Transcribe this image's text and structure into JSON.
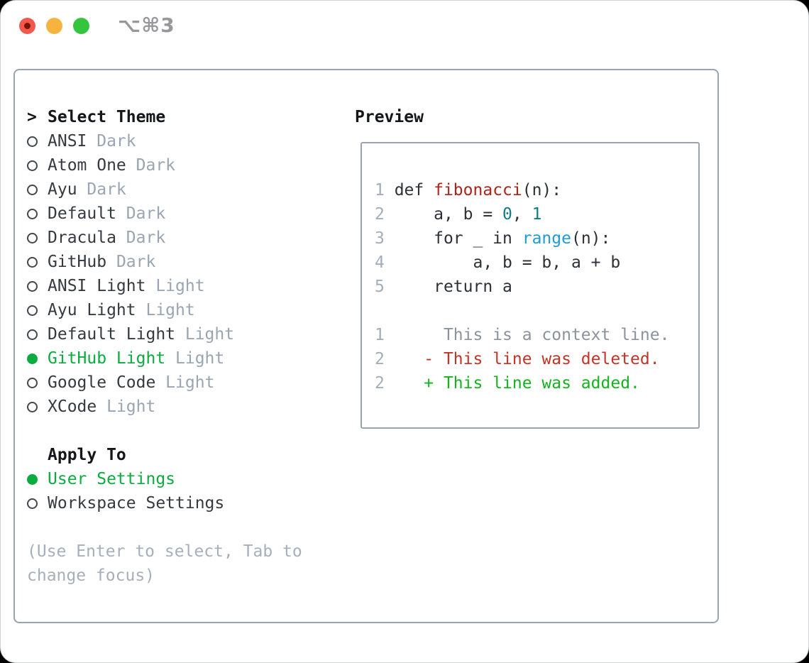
{
  "window": {
    "title": "⌥⌘3"
  },
  "titlebar": {
    "buttons": [
      {
        "name": "close",
        "color": "#f2584c"
      },
      {
        "name": "minimize",
        "color": "#f6b43e"
      },
      {
        "name": "zoom",
        "color": "#35c53d"
      }
    ]
  },
  "theme_picker": {
    "prompt_prefix": ">",
    "title": "Select Theme",
    "themes": [
      {
        "name": "ANSI",
        "variant": "Dark",
        "selected": false
      },
      {
        "name": "Atom One",
        "variant": "Dark",
        "selected": false
      },
      {
        "name": "Ayu",
        "variant": "Dark",
        "selected": false
      },
      {
        "name": "Default",
        "variant": "Dark",
        "selected": false
      },
      {
        "name": "Dracula",
        "variant": "Dark",
        "selected": false
      },
      {
        "name": "GitHub",
        "variant": "Dark",
        "selected": false
      },
      {
        "name": "ANSI Light",
        "variant": "Light",
        "selected": false
      },
      {
        "name": "Ayu Light",
        "variant": "Light",
        "selected": false
      },
      {
        "name": "Default Light",
        "variant": "Light",
        "selected": false
      },
      {
        "name": "GitHub Light",
        "variant": "Light",
        "selected": true
      },
      {
        "name": "Google Code",
        "variant": "Light",
        "selected": false
      },
      {
        "name": "XCode",
        "variant": "Light",
        "selected": false
      }
    ],
    "apply_to": {
      "title": "Apply To",
      "options": [
        {
          "label": "User Settings",
          "selected": true
        },
        {
          "label": "Workspace Settings",
          "selected": false
        }
      ]
    },
    "hint_lines": [
      "(Use Enter to select, Tab to",
      "change focus)"
    ]
  },
  "preview": {
    "title": "Preview",
    "lines": [
      [
        {
          "t": "1",
          "c": "line-number"
        },
        {
          "t": " def ",
          "c": "default"
        },
        {
          "t": "fibonacci",
          "c": "function"
        },
        {
          "t": "(n):",
          "c": "default"
        }
      ],
      [
        {
          "t": "2",
          "c": "line-number"
        },
        {
          "t": "     a, b = ",
          "c": "default"
        },
        {
          "t": "0",
          "c": "number"
        },
        {
          "t": ", ",
          "c": "default"
        },
        {
          "t": "1",
          "c": "number"
        }
      ],
      [
        {
          "t": "3",
          "c": "line-number"
        },
        {
          "t": "     for _ in ",
          "c": "default"
        },
        {
          "t": "range",
          "c": "builtin"
        },
        {
          "t": "(n):",
          "c": "default"
        }
      ],
      [
        {
          "t": "4",
          "c": "line-number"
        },
        {
          "t": "         a, b = b, a + b",
          "c": "default"
        }
      ],
      [
        {
          "t": "5",
          "c": "line-number"
        },
        {
          "t": "     return a",
          "c": "default"
        }
      ],
      [],
      [
        {
          "t": "1",
          "c": "line-number"
        },
        {
          "t": "      This is a context line.",
          "c": "context"
        }
      ],
      [
        {
          "t": "2",
          "c": "line-number"
        },
        {
          "t": "    - This line was deleted.",
          "c": "deleted"
        }
      ],
      [
        {
          "t": "2",
          "c": "line-number"
        },
        {
          "t": "    + This line was added.",
          "c": "added"
        }
      ]
    ]
  },
  "colors": {
    "selection-green": "#0cab40",
    "name-dark": "#353a41",
    "variant-gray": "#9aa5b3",
    "hint-gray": "#a6afba",
    "header-black": "#14161a",
    "panel-border": "#9aa3ae",
    "bullet-outline": "#42474e",
    "title-gray": "#97979c",
    "close-dot": "#7e1205",
    "line-number": "#a3aeba",
    "code-default": "#2b3137",
    "code-function": "#ad2418",
    "code-number": "#0e7d85",
    "code-builtin": "#1e9ade",
    "diff-context": "#8b939c",
    "diff-deleted": "#c23425",
    "diff-added": "#14b31e"
  }
}
